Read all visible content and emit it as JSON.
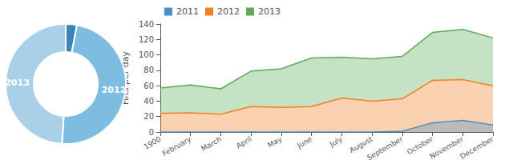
{
  "chart_data": [
    {
      "type": "donut",
      "categories": [
        null,
        "2012",
        "2013"
      ],
      "values": [
        3,
        48,
        49
      ],
      "colors": [
        "#3a82bb",
        "#7ebde0",
        "#aad0e8"
      ]
    },
    {
      "type": "area",
      "ylabel": "Hits per day",
      "categories": [
        "1900",
        "February",
        "March",
        "April",
        "May",
        "June",
        "July",
        "August",
        "September",
        "October",
        "November",
        "December"
      ],
      "series": [
        {
          "name": "2011",
          "color": "#4a90c4",
          "values": [
            0,
            0,
            0,
            0,
            0,
            0,
            0,
            0,
            1,
            12,
            15,
            9
          ]
        },
        {
          "name": "2012",
          "color": "#f47f20",
          "stacked": true,
          "values": [
            24,
            25,
            23,
            33,
            32,
            33,
            44,
            40,
            43,
            67,
            68,
            60
          ]
        },
        {
          "name": "2013",
          "color": "#5aab5a",
          "stacked": true,
          "values": [
            33,
            36,
            33,
            46,
            50,
            63,
            53,
            55,
            55,
            62,
            65,
            62
          ]
        }
      ],
      "ylim": [
        0,
        140
      ],
      "yticks": [
        0,
        20,
        40,
        60,
        80,
        100,
        120,
        140
      ],
      "grid": false,
      "legend": "upper left"
    }
  ]
}
